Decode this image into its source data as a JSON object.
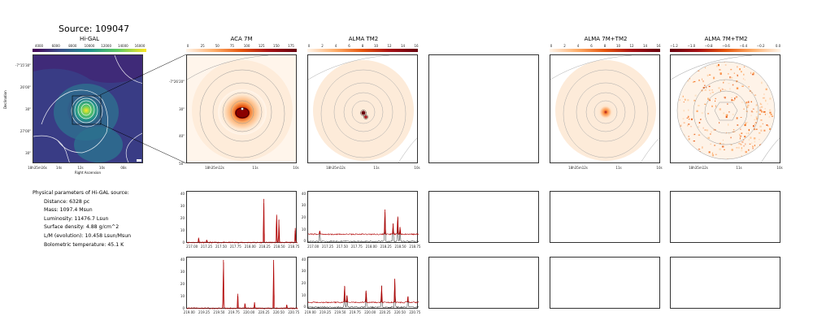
{
  "source_title": "Source: 109047",
  "panels": {
    "higal": {
      "title": "Hi-GAL",
      "colorbar_ticks": [
        "4000",
        "6000",
        "8000",
        "10000",
        "12000",
        "14000",
        "16000"
      ],
      "y_ticks": [
        "-7°15'30\"",
        "26'00\"",
        "30\"",
        "27'00\"",
        "30\""
      ],
      "x_ticks": [
        "18h35m16s",
        "14s",
        "12s",
        "10s",
        "08s"
      ],
      "xlabel": "Right Ascension",
      "ylabel": "Declination"
    },
    "aca": {
      "title": "ACA 7M",
      "colorbar_ticks": [
        "0",
        "25",
        "50",
        "75",
        "100",
        "125",
        "150",
        "175"
      ],
      "y_ticks": [
        "-7°26'20\"",
        "30\"",
        "40\"",
        "50\""
      ],
      "x_ticks": [
        "18h35m12s",
        "11s",
        "10s"
      ]
    },
    "tm2": {
      "title": "ALMA TM2",
      "colorbar_ticks": [
        "0",
        "2",
        "4",
        "6",
        "8",
        "10",
        "12",
        "14",
        "16"
      ],
      "x_ticks": [
        "18h35m12s",
        "11s",
        "10s"
      ]
    },
    "combo": {
      "title": "ALMA 7M+TM2",
      "colorbar_ticks": [
        "0",
        "2",
        "4",
        "6",
        "8",
        "10",
        "12",
        "14",
        "16"
      ],
      "x_ticks": [
        "18h35m12s",
        "11s",
        "10s"
      ]
    },
    "combo_tp": {
      "title": "ALMA 7M+TM2",
      "colorbar_ticks": [
        "−1.2",
        "−1.0",
        "−0.8",
        "−0.6",
        "−0.4",
        "−0.2",
        "0.0"
      ],
      "x_ticks": [
        "18h35m12s",
        "11s",
        "10s"
      ]
    }
  },
  "physical_parameters": {
    "heading": "Physical parameters of Hi-GAL source:",
    "distance": "Distance: 6328 pc",
    "mass": "Mass: 1097.4 Msun",
    "luminosity": "Luminosity: 11476.7 Lsun",
    "surface_density": "Surface density: 4.88 g/cm^2",
    "lm": "L/M (evolution): 10.458 Lsun/Msun",
    "tbol": "Bolometric temperature: 45.1 K"
  },
  "chart_data": [
    {
      "type": "line",
      "id": "aca_spw1",
      "xlim": [
        216.9,
        218.8
      ],
      "ylim": [
        -1,
        42
      ],
      "x_ticks": [
        "217.00",
        "217.25",
        "217.50",
        "217.75",
        "218.00",
        "218.25",
        "218.50",
        "218.75"
      ],
      "y_ticks": [
        "0",
        "10",
        "20",
        "30",
        "40"
      ],
      "peaks": [
        {
          "x": 217.1,
          "y": 4
        },
        {
          "x": 217.24,
          "y": 2
        },
        {
          "x": 218.22,
          "y": 36
        },
        {
          "x": 218.44,
          "y": 23
        },
        {
          "x": 218.48,
          "y": 19
        },
        {
          "x": 218.76,
          "y": 12
        }
      ],
      "baseline": 0,
      "color": "#b00000"
    },
    {
      "type": "line",
      "id": "tm2_spw1",
      "xlim": [
        216.9,
        218.8
      ],
      "ylim": [
        -2,
        42
      ],
      "x_ticks": [
        "217.00",
        "217.25",
        "217.50",
        "217.75",
        "218.00",
        "218.25",
        "218.50",
        "218.75"
      ],
      "y_ticks": [
        "0",
        "10",
        "20",
        "30",
        "40"
      ],
      "peaks": [
        {
          "x": 217.1,
          "y": 9
        },
        {
          "x": 218.22,
          "y": 27
        },
        {
          "x": 218.36,
          "y": 15
        },
        {
          "x": 218.44,
          "y": 21
        },
        {
          "x": 218.48,
          "y": 12
        }
      ],
      "baseline": 6,
      "color": "#b00000"
    },
    {
      "type": "line",
      "id": "aca_spw2",
      "xlim": [
        218.95,
        220.8
      ],
      "ylim": [
        -1,
        42
      ],
      "x_ticks": [
        "219.00",
        "219.25",
        "219.50",
        "219.75",
        "220.00",
        "220.25",
        "220.50",
        "220.75"
      ],
      "y_ticks": [
        "0",
        "10",
        "20",
        "30",
        "40"
      ],
      "peaks": [
        {
          "x": 219.56,
          "y": 40
        },
        {
          "x": 219.8,
          "y": 12
        },
        {
          "x": 219.92,
          "y": 4
        },
        {
          "x": 220.08,
          "y": 5
        },
        {
          "x": 220.4,
          "y": 40
        },
        {
          "x": 220.62,
          "y": 3
        }
      ],
      "baseline": 0,
      "color": "#b00000"
    },
    {
      "type": "line",
      "id": "tm2_spw2",
      "xlim": [
        218.95,
        220.8
      ],
      "ylim": [
        -2,
        42
      ],
      "x_ticks": [
        "219.00",
        "219.25",
        "219.50",
        "219.75",
        "220.00",
        "220.25",
        "220.50",
        "220.75"
      ],
      "y_ticks": [
        "0",
        "10",
        "20",
        "30",
        "40"
      ],
      "peaks": [
        {
          "x": 219.56,
          "y": 18
        },
        {
          "x": 219.6,
          "y": 10
        },
        {
          "x": 219.92,
          "y": 14
        },
        {
          "x": 220.18,
          "y": 18
        },
        {
          "x": 220.4,
          "y": 24
        },
        {
          "x": 220.62,
          "y": 9
        }
      ],
      "baseline": 4,
      "color": "#b00000"
    }
  ]
}
